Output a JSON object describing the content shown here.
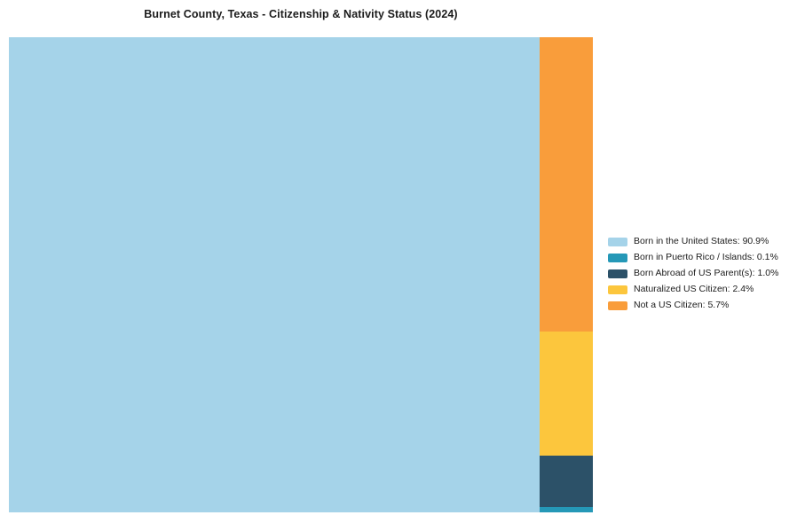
{
  "page_title": "Burnet County, Texas - Citizenship & Nativity Status (2024)",
  "chart_data": {
    "type": "treemap",
    "title": "Burnet County, Texas - Citizenship & Nativity Status (2024)",
    "unit": "%",
    "series": [
      {
        "label": "Born in the United States",
        "value": 90.9,
        "display": "Born in the United States: 90.9%",
        "color": "#A5D3E9"
      },
      {
        "label": "Born in Puerto Rico / Islands",
        "value": 0.1,
        "display": "Born in Puerto Rico / Islands: 0.1%",
        "color": "#2598B7"
      },
      {
        "label": "Born Abroad of US Parent(s)",
        "value": 1.0,
        "display": "Born Abroad of US Parent(s): 1.0%",
        "color": "#2C5168"
      },
      {
        "label": "Naturalized US Citizen",
        "value": 2.4,
        "display": "Naturalized US Citizen: 2.4%",
        "color": "#FCC63D"
      },
      {
        "label": "Not a US Citizen",
        "value": 5.7,
        "display": "Not a US Citizen: 5.7%",
        "color": "#F99D3B"
      }
    ],
    "layout": {
      "main_item_index": 0,
      "side_stack_order_top_to_bottom": [
        4,
        3,
        2,
        1
      ],
      "legend_position": "right-middle",
      "grid": "off"
    }
  }
}
